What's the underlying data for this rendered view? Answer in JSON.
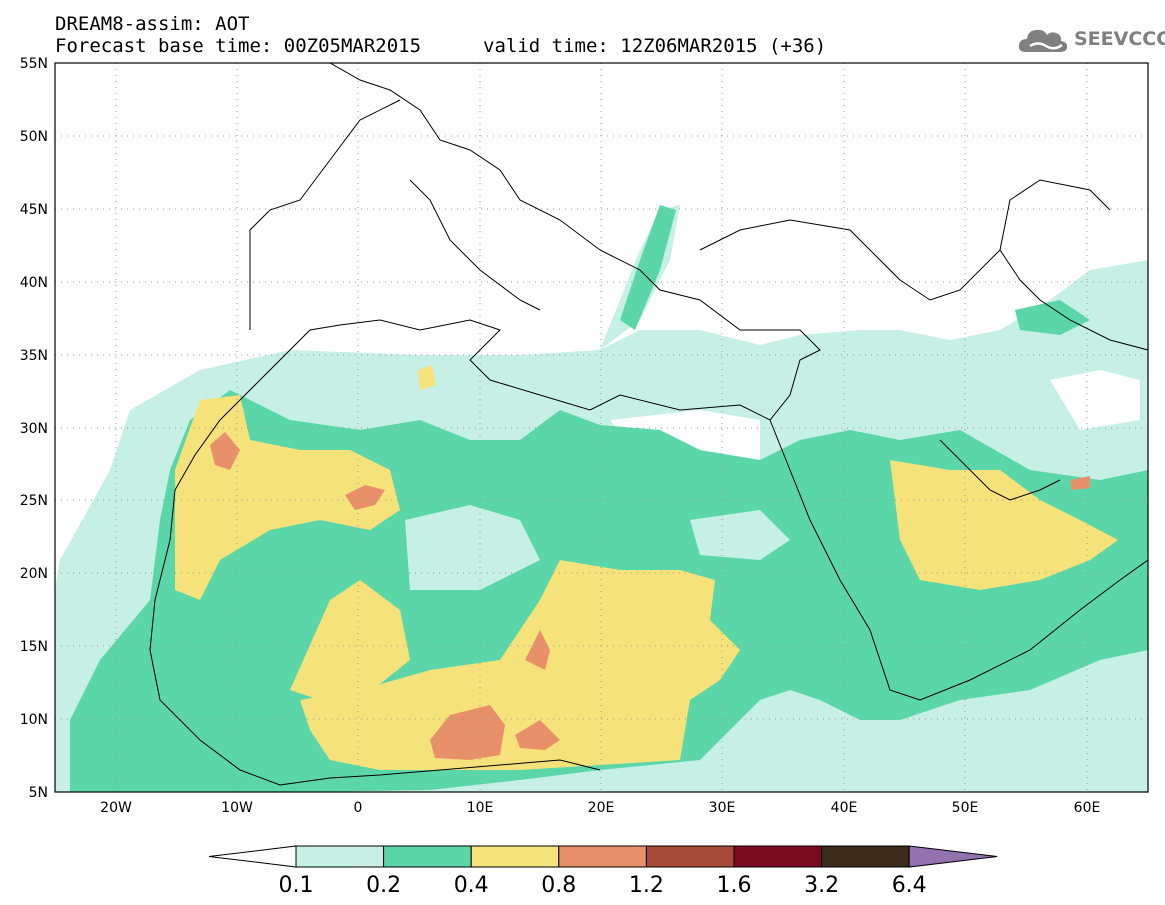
{
  "header": {
    "title_line1": "DREAM8-assim: AOT",
    "title_line2": "Forecast base time: 00Z05MAR2015",
    "valid_time": "valid time: 12Z06MAR2015 (+36)"
  },
  "logo": {
    "text": "SEEVCCC",
    "icon": "cloud-icon"
  },
  "map": {
    "lat_labels": [
      "55N",
      "50N",
      "45N",
      "40N",
      "35N",
      "30N",
      "25N",
      "20N",
      "15N",
      "10N",
      "5N"
    ],
    "lon_labels": [
      "20W",
      "10W",
      "0",
      "10E",
      "20E",
      "30E",
      "40E",
      "50E",
      "60E"
    ],
    "lat_range": [
      5,
      55
    ],
    "lon_range": [
      -25,
      65
    ],
    "grid": "dotted"
  },
  "colorbar": {
    "labels": [
      "0.1",
      "0.2",
      "0.4",
      "0.8",
      "1.2",
      "1.6",
      "3.2",
      "6.4"
    ],
    "colors": [
      "#ffffff",
      "#c6f0e6",
      "#5bd6a9",
      "#f6e27a",
      "#e8906a",
      "#a84a3a",
      "#7a0a22",
      "#3a2a1a",
      "#9472b0"
    ]
  }
}
